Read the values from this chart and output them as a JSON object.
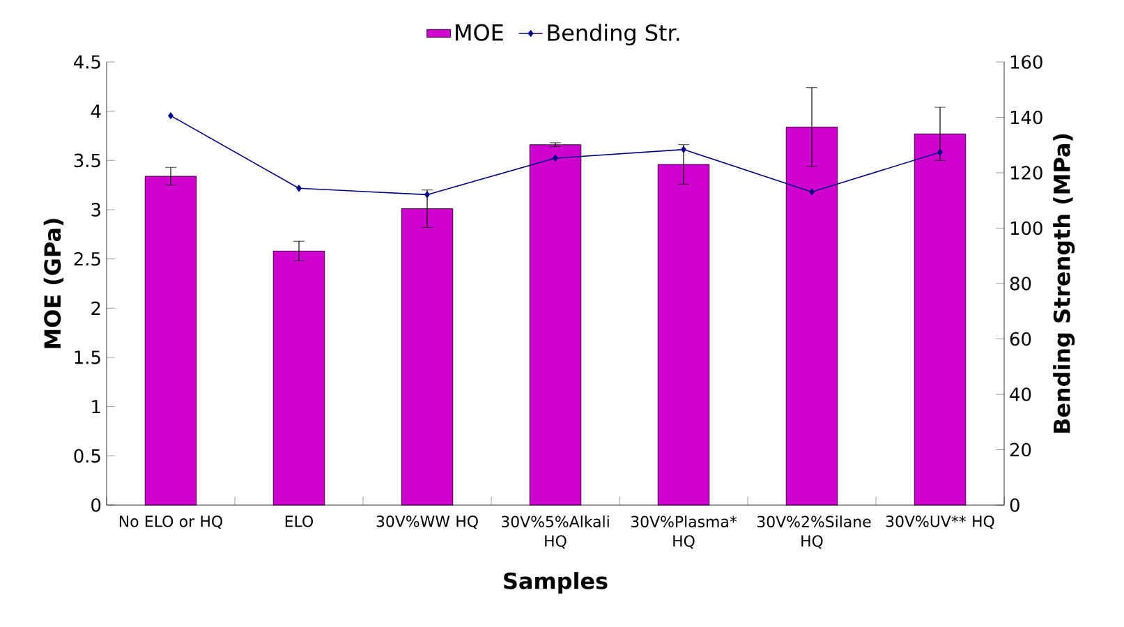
{
  "chart_data": {
    "type": "bar",
    "xlabel": "Samples",
    "ylabel": "MOE (GPa)",
    "y2label": "Bending Strength (MPa)",
    "categories": [
      "No ELO or HQ",
      "ELO",
      "30V%WW HQ",
      "30V%5%Alkali HQ",
      "30V%Plasma* HQ",
      "30V%2%Silane HQ",
      "30V%UV** HQ"
    ],
    "series": [
      {
        "name": "MOE",
        "color": "#d000d0",
        "values": [
          3.34,
          2.58,
          3.01,
          3.66,
          3.46,
          3.84,
          3.77
        ],
        "errors": [
          0.09,
          0.1,
          0.19,
          0.02,
          0.2,
          0.4,
          0.27
        ]
      },
      {
        "name": "Bending Str.",
        "type": "line",
        "axis": "y2",
        "color": "#000080",
        "values": [
          140.6,
          114.4,
          112.1,
          125.3,
          128.4,
          113.1,
          127.4
        ]
      }
    ],
    "ylim": [
      0,
      4.5
    ],
    "yticks": [
      0,
      0.5,
      1,
      1.5,
      2,
      2.5,
      3,
      3.5,
      4,
      4.5
    ],
    "y2lim": [
      0,
      160
    ],
    "y2ticks": [
      0,
      20,
      40,
      60,
      80,
      100,
      120,
      140,
      160
    ],
    "legend": "top",
    "marker": "diamond",
    "line_style": "solid"
  }
}
